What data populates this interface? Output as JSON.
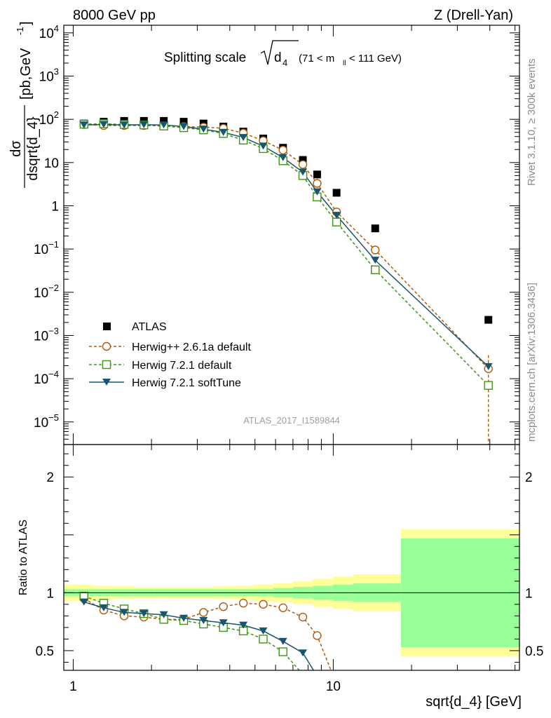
{
  "header": {
    "left": "8000 GeV pp",
    "right": "Z (Drell-Yan)"
  },
  "title": {
    "main": "Splitting scale",
    "root_var": "d",
    "root_sub": "4",
    "cut_open": "(71 < m",
    "cut_sub": "ll",
    "cut_close": " < 111 GeV)"
  },
  "watermark": "ATLAS_2017_I1589844",
  "side_text": {
    "top": "Rivet 3.1.10, ≥ 300k events",
    "bottom": "mcplots.cern.ch [arXiv:1306.3436]"
  },
  "colors": {
    "atlas": "#000000",
    "herwigpp": "#b05a0a",
    "herwig_default": "#3c9614",
    "herwig_soft": "#1a5570",
    "band_stat": "#99ff99",
    "band_total": "#ffff99"
  },
  "chart_data": [
    {
      "type": "scatter",
      "panel": "main",
      "title": "Splitting scale sqrt(d_4) (71 < m_ll < 111 GeV)",
      "ylabel_num": "dσ",
      "ylabel_den": "dsqrt{d_4}",
      "ylabel_unit": "[pb,GeV",
      "ylabel_unit_sup": "-1",
      "ylabel_unit_close": "]",
      "xscale": "log",
      "yscale": "log",
      "xlim": [
        0.92,
        52
      ],
      "ylim": [
        3e-06,
        15000
      ],
      "xticks": [
        {
          "v": 1,
          "label": "1"
        },
        {
          "v": 10,
          "label": "10"
        }
      ],
      "yticks": [
        {
          "v": 1e-05,
          "base": "10",
          "exp": "−5"
        },
        {
          "v": 0.0001,
          "base": "10",
          "exp": "−4"
        },
        {
          "v": 0.001,
          "base": "10",
          "exp": "−3"
        },
        {
          "v": 0.01,
          "base": "10",
          "exp": "−2"
        },
        {
          "v": 0.1,
          "base": "10",
          "exp": "−1"
        },
        {
          "v": 1,
          "base": "1",
          "exp": ""
        },
        {
          "v": 10,
          "base": "10",
          "exp": ""
        },
        {
          "v": 100,
          "base": "10",
          "exp": "2"
        },
        {
          "v": 1000,
          "base": "10",
          "exp": "3"
        },
        {
          "v": 10000,
          "base": "10",
          "exp": "4"
        }
      ],
      "legend_position": "lower-left",
      "series": [
        {
          "name": "ATLAS",
          "style": "square-filled",
          "x": [
            1.1,
            1.31,
            1.57,
            1.87,
            2.23,
            2.66,
            3.17,
            3.78,
            4.51,
            5.38,
            6.41,
            7.64,
            8.67,
            10.3,
            14.5,
            39.5
          ],
          "y": [
            80,
            88,
            92,
            92,
            92,
            88,
            80,
            68,
            52,
            36,
            22,
            11.5,
            5.3,
            2.0,
            0.3,
            0.0023
          ]
        },
        {
          "name": "Herwig++ 2.6.1a default",
          "style": "circle-open-dashed",
          "x": [
            1.1,
            1.31,
            1.57,
            1.87,
            2.23,
            2.66,
            3.17,
            3.78,
            4.51,
            5.38,
            6.41,
            7.64,
            8.67,
            10.3,
            14.5,
            39.5
          ],
          "y": [
            76,
            72,
            72,
            72,
            70,
            68,
            66,
            62,
            48,
            32,
            19.4,
            9.0,
            3.3,
            0.72,
            0.095,
            0.00017
          ]
        },
        {
          "name": "Herwig 7.2.1 default",
          "style": "square-open-dashed",
          "x": [
            1.1,
            1.31,
            1.57,
            1.87,
            2.23,
            2.66,
            3.17,
            3.78,
            4.51,
            5.38,
            6.41,
            7.64,
            8.67,
            10.3,
            14.5,
            39.5
          ],
          "y": [
            77,
            79,
            76,
            74,
            70,
            64,
            57,
            47,
            33,
            21,
            11,
            5.0,
            1.6,
            0.42,
            0.033,
            7e-05
          ]
        },
        {
          "name": "Herwig 7.2.1 softTune",
          "style": "triangle-down-filled-solid",
          "x": [
            1.1,
            1.31,
            1.57,
            1.87,
            2.23,
            2.66,
            3.17,
            3.78,
            4.51,
            5.38,
            6.41,
            7.64,
            8.67,
            10.3,
            14.5,
            39.5
          ],
          "y": [
            74,
            76,
            74,
            75,
            74,
            68,
            59,
            50,
            38,
            24,
            13,
            6.0,
            2.1,
            0.6,
            0.055,
            0.00019
          ]
        }
      ]
    },
    {
      "type": "line",
      "panel": "ratio",
      "ylabel": "Ratio to ATLAS",
      "xlabel": "sqrt{d_4} [GeV]",
      "xscale": "log",
      "xlim": [
        0.92,
        52
      ],
      "ylim": [
        0.33,
        2.28
      ],
      "yticks": [
        {
          "v": 0.5,
          "label": "0.5"
        },
        {
          "v": 1,
          "label": "1"
        },
        {
          "v": 2,
          "label": "2"
        }
      ],
      "bands": {
        "edges": [
          0.92,
          1.2,
          1.43,
          1.71,
          2.04,
          2.43,
          2.9,
          3.46,
          4.13,
          4.92,
          5.87,
          7.0,
          8.35,
          9.96,
          11.9,
          18.2,
          52
        ],
        "stat_half_width": [
          0.03,
          0.03,
          0.03,
          0.03,
          0.03,
          0.03,
          0.03,
          0.03,
          0.03,
          0.03,
          0.04,
          0.05,
          0.06,
          0.07,
          0.08,
          0.47
        ],
        "total_half_width": [
          0.07,
          0.06,
          0.055,
          0.05,
          0.05,
          0.05,
          0.05,
          0.055,
          0.06,
          0.07,
          0.08,
          0.1,
          0.12,
          0.14,
          0.16,
          0.55
        ]
      },
      "series": [
        {
          "name": "Herwig++ 2.6.1a default",
          "x": [
            1.1,
            1.31,
            1.57,
            1.87,
            2.23,
            2.66,
            3.17,
            3.78,
            4.51,
            5.38,
            6.41,
            7.64,
            8.67,
            9.8
          ],
          "y": [
            0.95,
            0.85,
            0.8,
            0.79,
            0.77,
            0.77,
            0.83,
            0.88,
            0.91,
            0.9,
            0.87,
            0.79,
            0.63,
            0.33
          ]
        },
        {
          "name": "Herwig 7.2.1 default",
          "x": [
            1.1,
            1.31,
            1.57,
            1.87,
            2.23,
            2.66,
            3.17,
            3.78,
            4.51,
            5.38,
            6.41,
            7.4
          ],
          "y": [
            0.97,
            0.91,
            0.86,
            0.82,
            0.77,
            0.76,
            0.73,
            0.7,
            0.67,
            0.6,
            0.49,
            0.33
          ]
        },
        {
          "name": "Herwig 7.2.1 softTune",
          "x": [
            1.1,
            1.31,
            1.57,
            1.87,
            2.23,
            2.66,
            3.17,
            3.78,
            4.51,
            5.38,
            6.41,
            7.64,
            8.4
          ],
          "y": [
            0.92,
            0.87,
            0.83,
            0.82,
            0.81,
            0.78,
            0.76,
            0.74,
            0.72,
            0.67,
            0.58,
            0.48,
            0.33
          ]
        }
      ]
    }
  ]
}
